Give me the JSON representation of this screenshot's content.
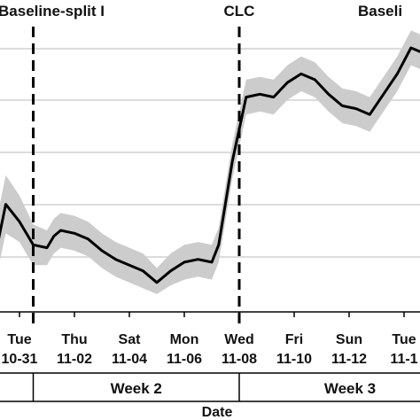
{
  "chart_data": {
    "type": "line",
    "xlabel": "Date",
    "ylabel": "",
    "grid": true,
    "ylim": [
      0,
      1
    ],
    "phases": [
      {
        "label": "Baseline-split I",
        "boundary": "2017-10-31T12:00"
      },
      {
        "label": "CLC",
        "boundary": "2017-11-08T00:00"
      },
      {
        "label": "Baseli",
        "boundary": null
      }
    ],
    "x_ticks": [
      {
        "date": "2017-10-31",
        "day": "Tue",
        "label": "10-31"
      },
      {
        "date": "2017-11-02",
        "day": "Thu",
        "label": "11-02"
      },
      {
        "date": "2017-11-04",
        "day": "Sat",
        "label": "11-04"
      },
      {
        "date": "2017-11-06",
        "day": "Mon",
        "label": "11-06"
      },
      {
        "date": "2017-11-08",
        "day": "Wed",
        "label": "11-08"
      },
      {
        "date": "2017-11-10",
        "day": "Fri",
        "label": "11-10"
      },
      {
        "date": "2017-11-12",
        "day": "Sun",
        "label": "11-12"
      },
      {
        "date": "2017-11-14",
        "day": "Tue",
        "label": "11-1"
      }
    ],
    "weeks": [
      {
        "label": "Week 2",
        "start": "2017-10-31T12:00",
        "end": "2017-11-08T00:00"
      },
      {
        "label": "Week 3",
        "start": "2017-11-08T00:00",
        "end": null
      }
    ],
    "series": [
      {
        "color": "#000000",
        "band_color": "#cccccc",
        "points": [
          {
            "t": "2017-10-30T00:00",
            "y": 0.12,
            "lo": 0.03,
            "hi": 0.22
          },
          {
            "t": "2017-10-30T12:00",
            "y": 0.35,
            "lo": 0.25,
            "hi": 0.45
          },
          {
            "t": "2017-10-31T00:00",
            "y": 0.29,
            "lo": 0.22,
            "hi": 0.38
          },
          {
            "t": "2017-10-31T12:00",
            "y": 0.21,
            "lo": 0.14,
            "hi": 0.28
          },
          {
            "t": "2017-11-01T00:00",
            "y": 0.2,
            "lo": 0.14,
            "hi": 0.26
          },
          {
            "t": "2017-11-01T06:00",
            "y": 0.24,
            "lo": 0.18,
            "hi": 0.3
          },
          {
            "t": "2017-11-01T12:00",
            "y": 0.26,
            "lo": 0.2,
            "hi": 0.32
          },
          {
            "t": "2017-11-02T00:00",
            "y": 0.25,
            "lo": 0.19,
            "hi": 0.31
          },
          {
            "t": "2017-11-02T12:00",
            "y": 0.23,
            "lo": 0.17,
            "hi": 0.29
          },
          {
            "t": "2017-11-03T00:00",
            "y": 0.19,
            "lo": 0.13,
            "hi": 0.25
          },
          {
            "t": "2017-11-03T12:00",
            "y": 0.16,
            "lo": 0.1,
            "hi": 0.22
          },
          {
            "t": "2017-11-04T00:00",
            "y": 0.14,
            "lo": 0.08,
            "hi": 0.2
          },
          {
            "t": "2017-11-04T12:00",
            "y": 0.12,
            "lo": 0.06,
            "hi": 0.18
          },
          {
            "t": "2017-11-05T00:00",
            "y": 0.08,
            "lo": 0.04,
            "hi": 0.13
          },
          {
            "t": "2017-11-05T12:00",
            "y": 0.12,
            "lo": 0.07,
            "hi": 0.18
          },
          {
            "t": "2017-11-06T00:00",
            "y": 0.15,
            "lo": 0.09,
            "hi": 0.21
          },
          {
            "t": "2017-11-06T12:00",
            "y": 0.16,
            "lo": 0.1,
            "hi": 0.22
          },
          {
            "t": "2017-11-07T00:00",
            "y": 0.15,
            "lo": 0.09,
            "hi": 0.21
          },
          {
            "t": "2017-11-07T06:00",
            "y": 0.21,
            "lo": 0.15,
            "hi": 0.27
          },
          {
            "t": "2017-11-07T18:00",
            "y": 0.5,
            "lo": 0.44,
            "hi": 0.56
          },
          {
            "t": "2017-11-08T06:00",
            "y": 0.72,
            "lo": 0.66,
            "hi": 0.78
          },
          {
            "t": "2017-11-08T18:00",
            "y": 0.73,
            "lo": 0.67,
            "hi": 0.79
          },
          {
            "t": "2017-11-09T06:00",
            "y": 0.72,
            "lo": 0.66,
            "hi": 0.78
          },
          {
            "t": "2017-11-09T18:00",
            "y": 0.77,
            "lo": 0.71,
            "hi": 0.83
          },
          {
            "t": "2017-11-10T06:00",
            "y": 0.8,
            "lo": 0.74,
            "hi": 0.86
          },
          {
            "t": "2017-11-10T18:00",
            "y": 0.78,
            "lo": 0.72,
            "hi": 0.84
          },
          {
            "t": "2017-11-11T06:00",
            "y": 0.73,
            "lo": 0.67,
            "hi": 0.79
          },
          {
            "t": "2017-11-11T18:00",
            "y": 0.69,
            "lo": 0.63,
            "hi": 0.75
          },
          {
            "t": "2017-11-12T06:00",
            "y": 0.68,
            "lo": 0.62,
            "hi": 0.74
          },
          {
            "t": "2017-11-12T18:00",
            "y": 0.66,
            "lo": 0.6,
            "hi": 0.72
          },
          {
            "t": "2017-11-13T06:00",
            "y": 0.73,
            "lo": 0.67,
            "hi": 0.79
          },
          {
            "t": "2017-11-13T18:00",
            "y": 0.8,
            "lo": 0.74,
            "hi": 0.86
          },
          {
            "t": "2017-11-14T06:00",
            "y": 0.89,
            "lo": 0.83,
            "hi": 0.95
          },
          {
            "t": "2017-11-14T18:00",
            "y": 0.87,
            "lo": 0.81,
            "hi": 0.93
          },
          {
            "t": "2017-11-15T00:00",
            "y": 0.8,
            "lo": 0.74,
            "hi": 0.86
          }
        ]
      }
    ]
  }
}
